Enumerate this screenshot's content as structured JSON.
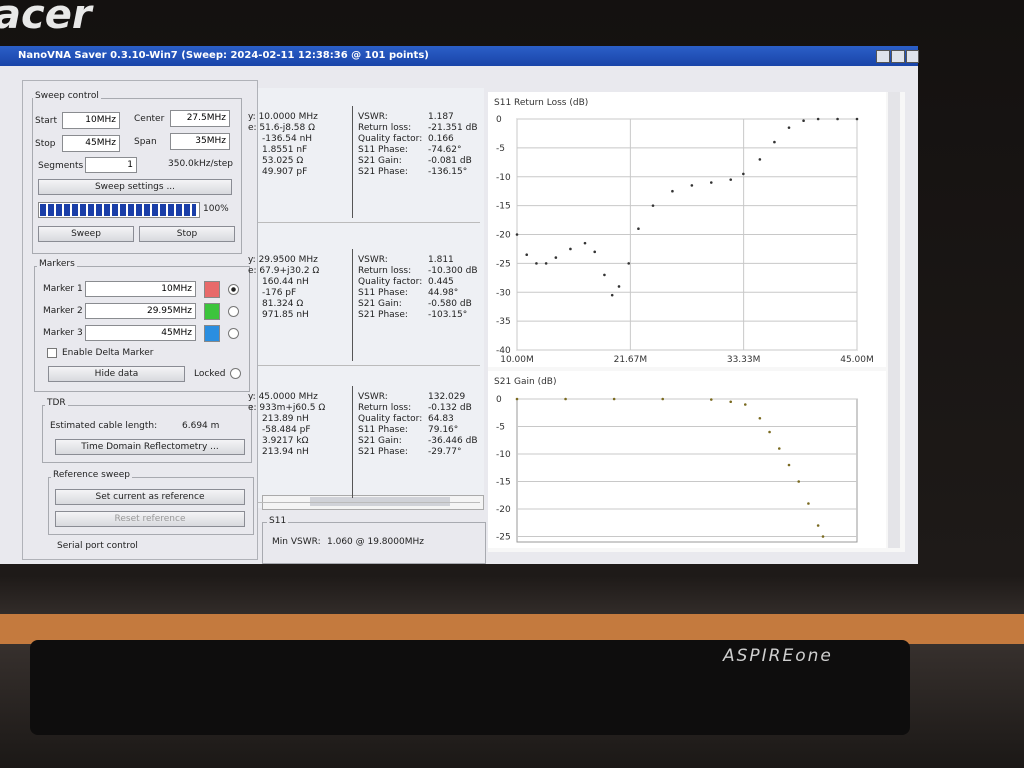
{
  "bezel": {
    "brand": "acer",
    "model": "ASPIREone"
  },
  "window": {
    "title": "NanoVNA Saver 0.3.10-Win7 (Sweep: 2024-02-11 12:38:36 @ 101 points)"
  },
  "sweep_control": {
    "title": "Sweep control",
    "start_label": "Start",
    "start": "10MHz",
    "center_label": "Center",
    "center": "27.5MHz",
    "stop_label": "Stop",
    "stop": "45MHz",
    "span_label": "Span",
    "span": "35MHz",
    "segments_label": "Segments",
    "segments": "1",
    "step": "350.0kHz/step",
    "settings_button": "Sweep settings ...",
    "progress": 100,
    "progress_label": "100%",
    "sweep_button": "Sweep",
    "stop_button": "Stop"
  },
  "markers": {
    "title": "Markers",
    "items": [
      {
        "label": "Marker 1",
        "value": "10MHz",
        "color": "#e86a6a"
      },
      {
        "label": "Marker 2",
        "value": "29.95MHz",
        "color": "#3cc43c"
      },
      {
        "label": "Marker 3",
        "value": "45MHz",
        "color": "#2a8ee0"
      }
    ],
    "delta": "Enable Delta Marker",
    "hide_button": "Hide data",
    "locked": "Locked"
  },
  "tdr": {
    "title": "TDR",
    "length_label": "Estimated cable length:",
    "length": "6.694 m",
    "button": "Time Domain Reflectometry ..."
  },
  "reference": {
    "title": "Reference sweep",
    "set_button": "Set current as reference",
    "reset_button": "Reset reference"
  },
  "serial": {
    "title": "Serial port control"
  },
  "marker_data": [
    {
      "left": [
        "y: 10.0000 MHz",
        "e: 51.6-j8.58 Ω",
        "-136.54 nH",
        "1.8551 nF",
        "53.025 Ω",
        "49.907 pF"
      ],
      "right": [
        [
          "VSWR:",
          "1.187"
        ],
        [
          "Return loss:",
          "-21.351 dB"
        ],
        [
          "Quality factor:",
          "0.166"
        ],
        [
          "S11 Phase:",
          "-74.62°"
        ],
        [
          "S21 Gain:",
          "-0.081 dB"
        ],
        [
          "S21 Phase:",
          "-136.15°"
        ]
      ]
    },
    {
      "left": [
        "y: 29.9500 MHz",
        "e: 67.9+j30.2 Ω",
        "160.44 nH",
        "-176 pF",
        "81.324 Ω",
        "971.85 nH"
      ],
      "right": [
        [
          "VSWR:",
          "1.811"
        ],
        [
          "Return loss:",
          "-10.300 dB"
        ],
        [
          "Quality factor:",
          "0.445"
        ],
        [
          "S11 Phase:",
          "44.98°"
        ],
        [
          "S21 Gain:",
          "-0.580 dB"
        ],
        [
          "S21 Phase:",
          "-103.15°"
        ]
      ]
    },
    {
      "left": [
        "y: 45.0000 MHz",
        "e: 933m+j60.5 Ω",
        "213.89 nH",
        "-58.484 pF",
        "3.9217 kΩ",
        "213.94 nH"
      ],
      "right": [
        [
          "VSWR:",
          "132.029"
        ],
        [
          "Return loss:",
          "-0.132 dB"
        ],
        [
          "Quality factor:",
          "64.83"
        ],
        [
          "S11 Phase:",
          "79.16°"
        ],
        [
          "S21 Gain:",
          "-36.446 dB"
        ],
        [
          "S21 Phase:",
          "-29.77°"
        ]
      ]
    }
  ],
  "s11_box": {
    "title": "S11",
    "min_label": "Min VSWR:",
    "min_value": "1.060 @ 19.8000MHz"
  },
  "charts": [
    {
      "type": "scatter",
      "title": "S11 Return Loss (dB)",
      "color": "#333333",
      "grid": true,
      "x": [
        10,
        11,
        12,
        13,
        14,
        15.5,
        17,
        18,
        19,
        19.8,
        20.5,
        21.5,
        22.5,
        24,
        26,
        28,
        30,
        32,
        33.3,
        35,
        36.5,
        38,
        39.5,
        41,
        43,
        45
      ],
      "values": [
        -20,
        -23.5,
        -25,
        -25,
        -24,
        -22.5,
        -21.5,
        -23,
        -27,
        -30.5,
        -29,
        -25,
        -19,
        -15,
        -12.5,
        -11.5,
        -11,
        -10.5,
        -9.5,
        -7,
        -4,
        -1.5,
        -0.3,
        0,
        0,
        0
      ],
      "xlim": [
        10,
        45
      ],
      "ylim": [
        -40,
        0
      ],
      "xticks": [
        {
          "value": 10,
          "label": "10.00M"
        },
        {
          "value": 21.67,
          "label": "21.67M"
        },
        {
          "value": 33.33,
          "label": "33.33M"
        },
        {
          "value": 45,
          "label": "45.00M"
        }
      ],
      "yticks": [
        0,
        -5,
        -10,
        -15,
        -20,
        -25,
        -30,
        -35,
        -40
      ]
    },
    {
      "type": "scatter",
      "title": "S21 Gain (dB)",
      "color": "#7a6a20",
      "grid": true,
      "x": [
        10,
        15,
        20,
        25,
        30,
        32,
        33.5,
        35,
        36,
        37,
        38,
        39,
        40,
        41,
        41.5
      ],
      "values": [
        0,
        0,
        0,
        0,
        -0.1,
        -0.5,
        -1,
        -3.5,
        -6,
        -9,
        -12,
        -15,
        -19,
        -23,
        -25
      ],
      "xlim": [
        10,
        45
      ],
      "ylim": [
        -26,
        0
      ],
      "yticks": [
        0,
        -5,
        -10,
        -15,
        -20,
        -25
      ]
    }
  ]
}
